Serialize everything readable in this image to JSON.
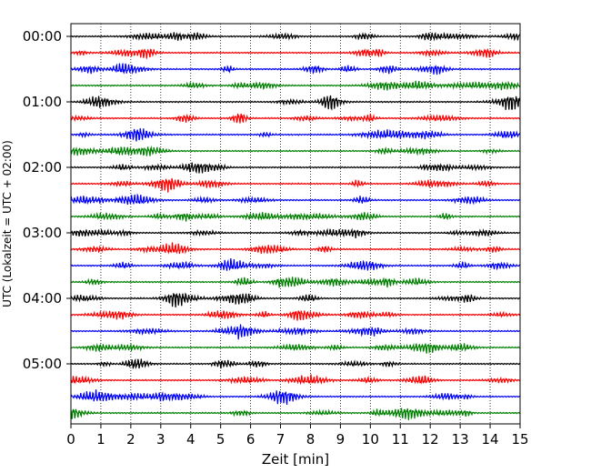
{
  "chart_data": {
    "type": "line",
    "title": "",
    "xlabel": "Zeit  [min]",
    "ylabel": "UTC (Lokalzeit = UTC + 02:00)",
    "xlim": [
      0,
      15
    ],
    "x_ticks": [
      "0",
      "1",
      "2",
      "3",
      "4",
      "5",
      "6",
      "7",
      "8",
      "9",
      "10",
      "11",
      "12",
      "13",
      "14",
      "15"
    ],
    "y_ticks": [
      "00:00",
      "01:00",
      "02:00",
      "03:00",
      "04:00",
      "05:00"
    ],
    "grid": "vertical dotted lines at each minute",
    "trace_colors": [
      "#000000",
      "#ff0000",
      "#0000ff",
      "#008000"
    ],
    "trace_count": 24,
    "trace_interval_minutes": 15
  }
}
